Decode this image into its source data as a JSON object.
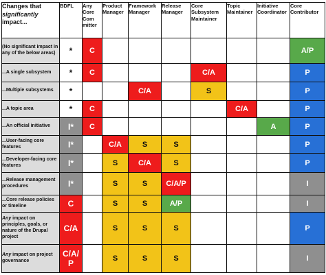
{
  "colors": {
    "red": "#ee1c1c",
    "yellow": "#f2c318",
    "green": "#58a94a",
    "blue": "#2770d6",
    "gray": "#8f8f8f",
    "rowheader_gray": "#dcdcdc"
  },
  "corner_header": {
    "part1": "Changes that ",
    "part2_italic": "significantly",
    "part3": " impact..."
  },
  "columns": [
    "BDFL",
    "Any Core Com mitter",
    "Product Manager",
    "Framework Manager",
    "Release Manager",
    "Core Subsystem Maintainer",
    "Topic Maintainer",
    "Initiative Coordinator",
    "Core Contributor"
  ],
  "rows": [
    {
      "label_pre": "",
      "label_italic": "",
      "label": "(No significant impact in any of the below areas)",
      "cells": [
        {
          "text": "*",
          "color": "white"
        },
        {
          "text": "C",
          "color": "red"
        },
        {
          "text": "",
          "color": "white"
        },
        {
          "text": "",
          "color": "white"
        },
        {
          "text": "",
          "color": "white"
        },
        {
          "text": "",
          "color": "white"
        },
        {
          "text": "",
          "color": "white"
        },
        {
          "text": "",
          "color": "white"
        },
        {
          "text": "A/P",
          "color": "green"
        }
      ]
    },
    {
      "label_pre": "",
      "label_italic": "",
      "label": "...A single subsystem",
      "cells": [
        {
          "text": "*",
          "color": "white"
        },
        {
          "text": "C",
          "color": "red"
        },
        {
          "text": "",
          "color": "white"
        },
        {
          "text": "",
          "color": "white"
        },
        {
          "text": "",
          "color": "white"
        },
        {
          "text": "C/A",
          "color": "red"
        },
        {
          "text": "",
          "color": "white"
        },
        {
          "text": "",
          "color": "white"
        },
        {
          "text": "P",
          "color": "blue"
        }
      ]
    },
    {
      "label_pre": "",
      "label_italic": "",
      "label": "...Multiple subsystems",
      "cells": [
        {
          "text": "*",
          "color": "white"
        },
        {
          "text": "",
          "color": "white"
        },
        {
          "text": "",
          "color": "white"
        },
        {
          "text": "C/A",
          "color": "red"
        },
        {
          "text": "",
          "color": "white"
        },
        {
          "text": "S",
          "color": "yellow"
        },
        {
          "text": "",
          "color": "white"
        },
        {
          "text": "",
          "color": "white"
        },
        {
          "text": "P",
          "color": "blue"
        }
      ]
    },
    {
      "label_pre": "",
      "label_italic": "",
      "label": "...A topic area",
      "cells": [
        {
          "text": "*",
          "color": "white"
        },
        {
          "text": "C",
          "color": "red"
        },
        {
          "text": "",
          "color": "white"
        },
        {
          "text": "",
          "color": "white"
        },
        {
          "text": "",
          "color": "white"
        },
        {
          "text": "",
          "color": "white"
        },
        {
          "text": "C/A",
          "color": "red"
        },
        {
          "text": "",
          "color": "white"
        },
        {
          "text": "P",
          "color": "blue"
        }
      ]
    },
    {
      "label_pre": "",
      "label_italic": "",
      "label": "...An official initiative",
      "cells": [
        {
          "text": "I*",
          "color": "gray"
        },
        {
          "text": "C",
          "color": "red"
        },
        {
          "text": "",
          "color": "white"
        },
        {
          "text": "",
          "color": "white"
        },
        {
          "text": "",
          "color": "white"
        },
        {
          "text": "",
          "color": "white"
        },
        {
          "text": "",
          "color": "white"
        },
        {
          "text": "A",
          "color": "green"
        },
        {
          "text": "P",
          "color": "blue"
        }
      ]
    },
    {
      "label_pre": "",
      "label_italic": "",
      "label": "...User-facing core features",
      "cells": [
        {
          "text": "I*",
          "color": "gray"
        },
        {
          "text": "",
          "color": "white"
        },
        {
          "text": "C/A",
          "color": "red"
        },
        {
          "text": "S",
          "color": "yellow"
        },
        {
          "text": "S",
          "color": "yellow"
        },
        {
          "text": "",
          "color": "white"
        },
        {
          "text": "",
          "color": "white"
        },
        {
          "text": "",
          "color": "white"
        },
        {
          "text": "P",
          "color": "blue"
        }
      ]
    },
    {
      "label_pre": "",
      "label_italic": "",
      "label": "...Developer-facing core features",
      "cells": [
        {
          "text": "I*",
          "color": "gray"
        },
        {
          "text": "",
          "color": "white"
        },
        {
          "text": "S",
          "color": "yellow"
        },
        {
          "text": "C/A",
          "color": "red"
        },
        {
          "text": "S",
          "color": "yellow"
        },
        {
          "text": "",
          "color": "white"
        },
        {
          "text": "",
          "color": "white"
        },
        {
          "text": "",
          "color": "white"
        },
        {
          "text": "P",
          "color": "blue"
        }
      ]
    },
    {
      "label_pre": "",
      "label_italic": "",
      "label": "...Release management procedures",
      "cells": [
        {
          "text": "I*",
          "color": "gray"
        },
        {
          "text": "",
          "color": "white"
        },
        {
          "text": "S",
          "color": "yellow"
        },
        {
          "text": "S",
          "color": "yellow"
        },
        {
          "text": "C/A/P",
          "color": "red"
        },
        {
          "text": "",
          "color": "white"
        },
        {
          "text": "",
          "color": "white"
        },
        {
          "text": "",
          "color": "white"
        },
        {
          "text": "I",
          "color": "gray"
        }
      ]
    },
    {
      "label_pre": "",
      "label_italic": "",
      "label": "...Core release policies or timeline",
      "cells": [
        {
          "text": "C",
          "color": "red"
        },
        {
          "text": "",
          "color": "white"
        },
        {
          "text": "S",
          "color": "yellow"
        },
        {
          "text": "S",
          "color": "yellow"
        },
        {
          "text": "A/P",
          "color": "green"
        },
        {
          "text": "",
          "color": "white"
        },
        {
          "text": "",
          "color": "white"
        },
        {
          "text": "",
          "color": "white"
        },
        {
          "text": "I",
          "color": "gray"
        }
      ]
    },
    {
      "label_pre": "",
      "label_italic": "Any",
      "label": " impact on principles, goals, or nature of the Drupal project",
      "cells": [
        {
          "text": "C/A",
          "color": "red"
        },
        {
          "text": "",
          "color": "white"
        },
        {
          "text": "S",
          "color": "yellow"
        },
        {
          "text": "S",
          "color": "yellow"
        },
        {
          "text": "S",
          "color": "yellow"
        },
        {
          "text": "",
          "color": "white"
        },
        {
          "text": "",
          "color": "white"
        },
        {
          "text": "",
          "color": "white"
        },
        {
          "text": "P",
          "color": "blue"
        }
      ]
    },
    {
      "label_pre": "",
      "label_italic": "Any",
      "label": " impact on project governance",
      "cells": [
        {
          "text": "C/A/ P",
          "color": "red"
        },
        {
          "text": "",
          "color": "white"
        },
        {
          "text": "S",
          "color": "yellow"
        },
        {
          "text": "S",
          "color": "yellow"
        },
        {
          "text": "S",
          "color": "yellow"
        },
        {
          "text": "",
          "color": "white"
        },
        {
          "text": "",
          "color": "white"
        },
        {
          "text": "",
          "color": "white"
        },
        {
          "text": "I",
          "color": "gray"
        }
      ]
    }
  ]
}
